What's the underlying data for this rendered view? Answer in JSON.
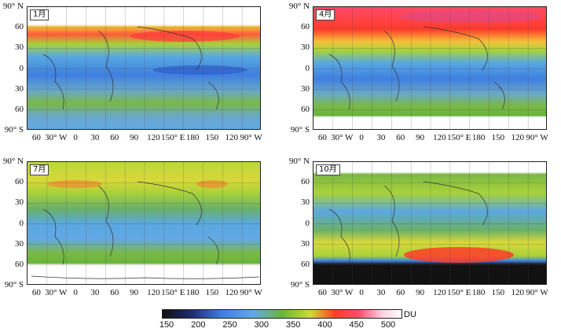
{
  "lat_labels": [
    "90° N",
    "60",
    "30",
    "0",
    "30",
    "60",
    "90° S"
  ],
  "lon_labels": [
    "60",
    "30° W",
    "0",
    "30",
    "60",
    "90",
    "120",
    "150° E",
    "180",
    "150",
    "120",
    "90° W"
  ],
  "panels": [
    {
      "month": "1月",
      "bottom_missing": 0
    },
    {
      "month": "4月",
      "bottom_missing": 0.12
    },
    {
      "month": "7月",
      "bottom_missing": 0.18
    },
    {
      "month": "10月",
      "bottom_missing": 0
    }
  ],
  "colorbar": {
    "unit": "DU",
    "ticks": [
      "150",
      "200",
      "250",
      "300",
      "350",
      "400",
      "450",
      "500"
    ],
    "colors": [
      "#111111",
      "#1f2a6e",
      "#3f7fe0",
      "#63a8e6",
      "#69b53c",
      "#cddc2f",
      "#ff3c2a",
      "#ff4a6a",
      "#ffd0e0",
      "#ffffff"
    ]
  }
}
